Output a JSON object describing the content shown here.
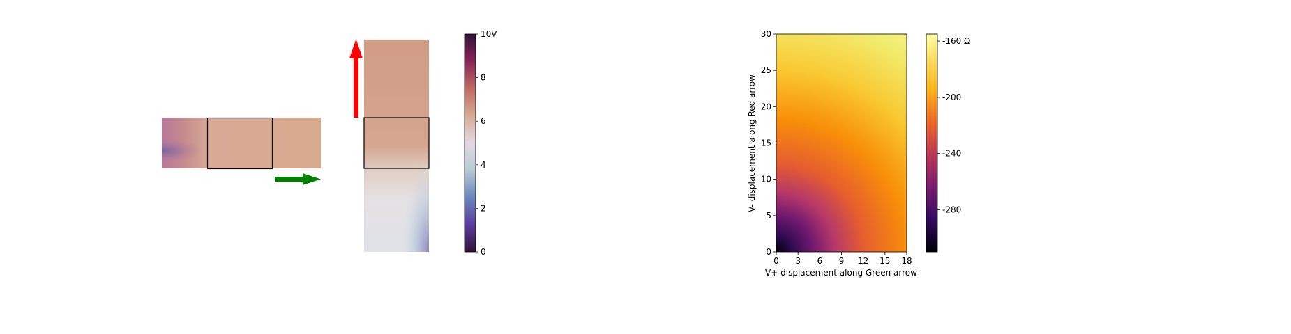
{
  "left_panel": {
    "arrows": {
      "green": {
        "color": "#008000",
        "direction": "right"
      },
      "red": {
        "color": "#ff0000",
        "direction": "up"
      }
    },
    "colorbar": {
      "colormap": "twilight",
      "ticks": [
        "0",
        "2",
        "4",
        "6",
        "8",
        "10V"
      ]
    },
    "frame_color": "#000000"
  },
  "chart_data": {
    "type": "heatmap",
    "title": "",
    "xlabel": "V+ displacement along Green arrow",
    "ylabel": "V- displacement along Red arrow",
    "xlim": [
      0,
      18
    ],
    "ylim": [
      0,
      30
    ],
    "x_ticks": [
      "0",
      "3",
      "6",
      "9",
      "12",
      "15",
      "18"
    ],
    "y_ticks": [
      "0",
      "5",
      "10",
      "15",
      "20",
      "25",
      "30"
    ],
    "colormap": "inferno",
    "colorbar": {
      "min": -310,
      "max": -155,
      "ticks": [
        {
          "value": -160,
          "label": "-160 Ω"
        },
        {
          "value": -200,
          "label": "-200"
        },
        {
          "value": -240,
          "label": "-240"
        },
        {
          "value": -280,
          "label": "-280"
        }
      ]
    }
  }
}
